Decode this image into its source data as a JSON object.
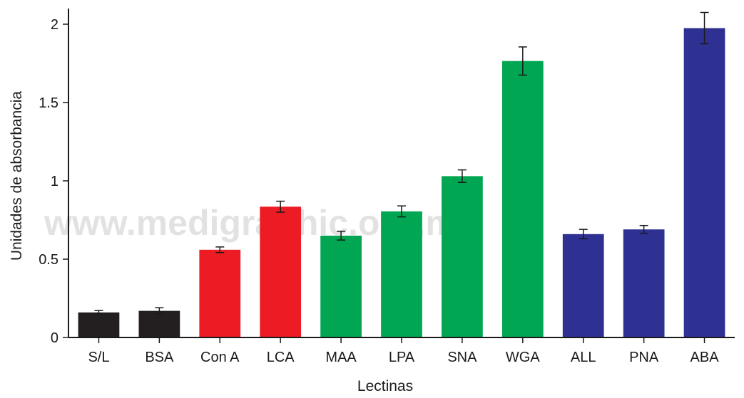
{
  "chart_data": {
    "type": "bar",
    "categories": [
      "S/L",
      "BSA",
      "Con A",
      "LCA",
      "MAA",
      "LPA",
      "SNA",
      "WGA",
      "ALL",
      "PNA",
      "ABA"
    ],
    "values": [
      0.16,
      0.17,
      0.56,
      0.835,
      0.65,
      0.805,
      1.03,
      1.765,
      0.66,
      0.69,
      1.975
    ],
    "errors": [
      0.012,
      0.02,
      0.018,
      0.035,
      0.028,
      0.035,
      0.04,
      0.09,
      0.03,
      0.025,
      0.1
    ],
    "bar_colors": [
      "#231f20",
      "#231f20",
      "#ed1c24",
      "#ed1c24",
      "#00a651",
      "#00a651",
      "#00a651",
      "#00a651",
      "#2e3192",
      "#2e3192",
      "#2e3192"
    ],
    "title": "",
    "xlabel": "Lectinas",
    "ylabel": "Unidades de absorbancia",
    "ylim": [
      0,
      2.1
    ],
    "yticks": [
      0,
      0.5,
      1,
      1.5,
      2
    ],
    "ytick_labels": [
      "0",
      "0.5",
      "1",
      "1.5",
      "2"
    ],
    "grid": false,
    "legend": "none"
  },
  "watermark": "www.medigraphic.org.mx"
}
